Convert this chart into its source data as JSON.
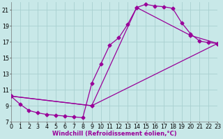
{
  "background_color": "#c8e8e8",
  "grid_color": "#a8d0d0",
  "line_color": "#990099",
  "markersize": 2.5,
  "linewidth": 0.9,
  "xlabel": "Windchill (Refroidissement éolien,°C)",
  "xlabel_fontsize": 6.0,
  "tick_fontsize": 5.8,
  "xlim": [
    0,
    23
  ],
  "ylim": [
    7,
    22
  ],
  "yticks": [
    7,
    9,
    11,
    13,
    15,
    17,
    19,
    21
  ],
  "xticks": [
    0,
    1,
    2,
    3,
    4,
    5,
    6,
    7,
    8,
    9,
    10,
    11,
    12,
    13,
    14,
    15,
    16,
    17,
    18,
    19,
    20,
    21,
    22,
    23
  ],
  "curve1_x": [
    0,
    1,
    2,
    3,
    4,
    5,
    6,
    7,
    8,
    9,
    10,
    11,
    12,
    13,
    14,
    15,
    16,
    17,
    18,
    19,
    20,
    21,
    22,
    23
  ],
  "curve1_y": [
    10.2,
    9.2,
    8.4,
    8.1,
    7.9,
    7.8,
    7.7,
    7.6,
    7.5,
    11.8,
    14.2,
    16.6,
    17.5,
    19.2,
    21.3,
    21.7,
    21.5,
    21.4,
    21.2,
    19.4,
    18.0,
    17.1,
    16.9,
    16.8
  ],
  "curve2_x": [
    0,
    9,
    14,
    20,
    23
  ],
  "curve2_y": [
    10.2,
    9.0,
    21.3,
    17.8,
    16.8
  ],
  "curve3_x": [
    0,
    9,
    23
  ],
  "curve3_y": [
    10.2,
    9.0,
    16.8
  ]
}
